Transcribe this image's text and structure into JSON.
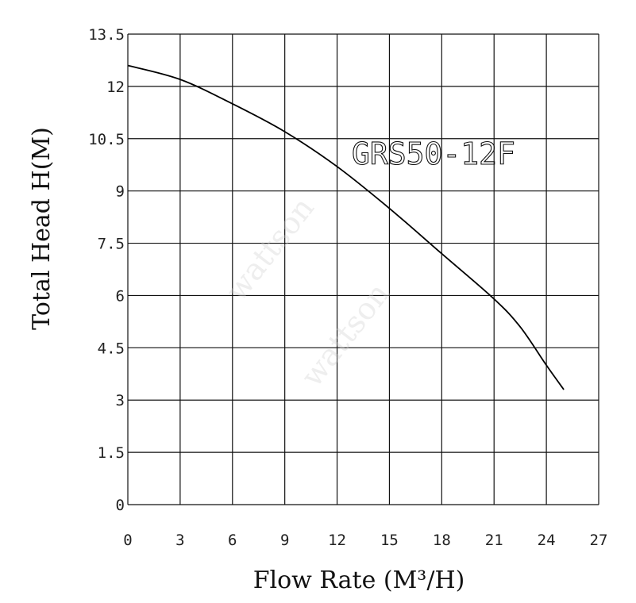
{
  "chart_data": {
    "type": "line",
    "title": "",
    "xlabel": "Flow Rate (M³/H)",
    "ylabel": "Total Head H(M)",
    "xlim": [
      0,
      27
    ],
    "ylim": [
      0,
      13.5
    ],
    "x_ticks": [
      "0",
      "3",
      "6",
      "9",
      "12",
      "15",
      "18",
      "21",
      "24",
      "27"
    ],
    "y_ticks": [
      "0",
      "1.5",
      "3",
      "4.5",
      "6",
      "7.5",
      "9",
      "10.5",
      "12",
      "13.5"
    ],
    "grid": true,
    "series": [
      {
        "name": "GRS50-12F",
        "x": [
          0,
          3,
          6,
          9,
          12,
          15,
          18,
          21,
          22.5,
          24,
          25
        ],
        "y": [
          12.6,
          12.2,
          11.5,
          10.7,
          9.7,
          8.5,
          7.2,
          5.9,
          5.1,
          4.0,
          3.3
        ]
      }
    ],
    "watermarks": [
      "wattson",
      "wattson"
    ]
  }
}
